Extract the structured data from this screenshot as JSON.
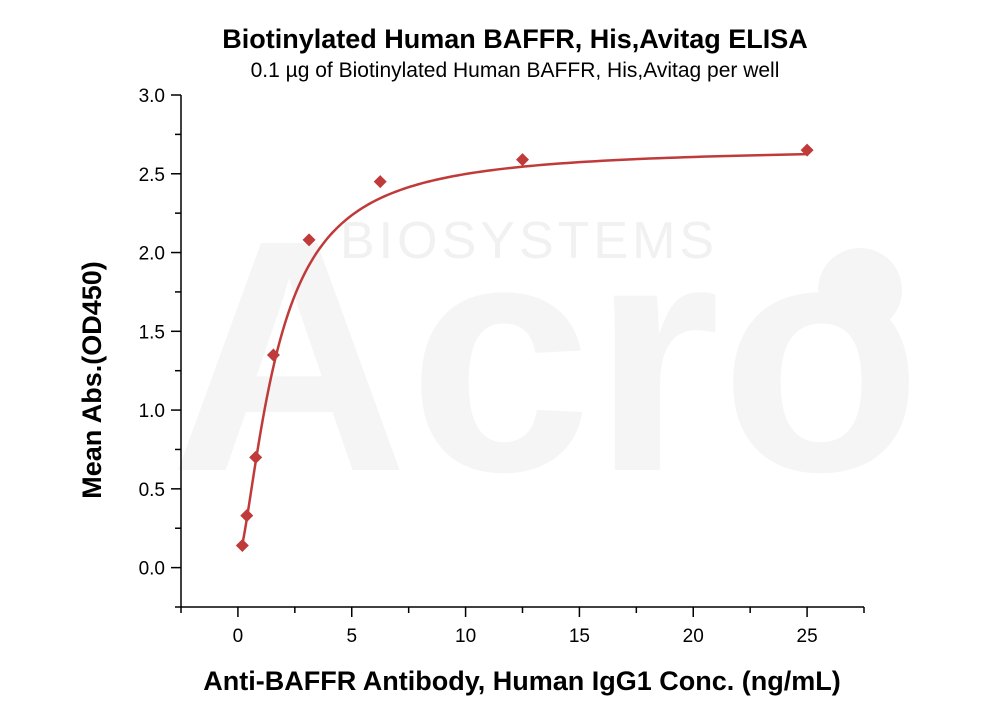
{
  "watermark": {
    "brand": "Acro",
    "sub": "BIOSYSTEMS"
  },
  "chart_data": {
    "type": "scatter",
    "title": "Biotinylated Human BAFFR, His,Avitag ELISA",
    "subtitle": "0.1 µg of Biotinylated Human BAFFR, His,Avitag per well",
    "xlabel": "Anti-BAFFR Antibody, Human IgG1 Conc. (ng/mL)",
    "ylabel": "Mean Abs.(OD450)",
    "xlim": [
      -2.5,
      27.5
    ],
    "ylim": [
      -0.25,
      3.0
    ],
    "xticks": [
      0,
      5,
      10,
      15,
      20,
      25
    ],
    "yticks": [
      0.0,
      0.5,
      1.0,
      1.5,
      2.0,
      2.5,
      3.0
    ],
    "xtick_labels": [
      "0",
      "5",
      "10",
      "15",
      "20",
      "25"
    ],
    "ytick_labels": [
      "0.0",
      "0.5",
      "1.0",
      "1.5",
      "2.0",
      "2.5",
      "3.0"
    ],
    "grid": false,
    "color": "#c03a3a",
    "marker": "diamond",
    "series": [
      {
        "x": [
          0.195,
          0.39,
          0.78,
          1.56,
          3.125,
          6.25,
          12.5,
          25
        ],
        "y": [
          0.14,
          0.33,
          0.7,
          1.35,
          2.08,
          2.45,
          2.59,
          2.65
        ]
      }
    ],
    "fit": {
      "type": "four-parameter logistic",
      "bottom": 0.05,
      "top": 2.67,
      "ec50": 1.7,
      "hill": 1.5
    }
  }
}
